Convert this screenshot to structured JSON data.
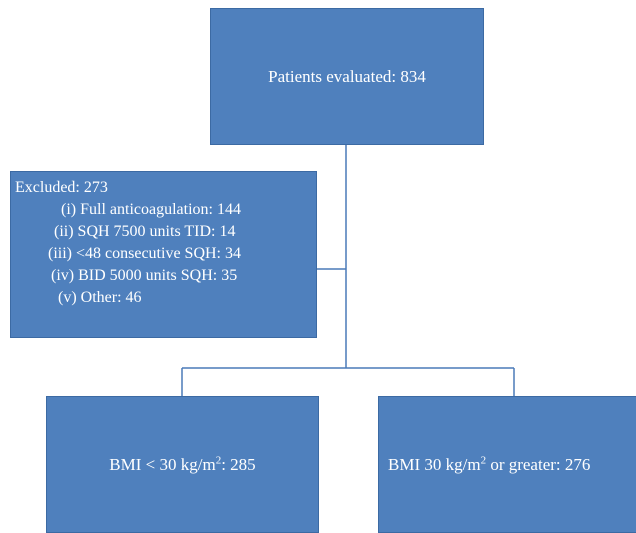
{
  "boxes": {
    "top": {
      "label": "Patients evaluated: 834"
    },
    "excluded": {
      "title": "Excluded: 273",
      "items": [
        "(i) Full anticoagulation: 144",
        "(ii) SQH 7500 units TID: 14",
        "(iii) <48 consecutive SQH: 34",
        "(iv) BID 5000 units SQH: 35",
        "(v) Other: 46"
      ]
    },
    "left": {
      "prefix": "BMI < 30 kg/m",
      "sup": "2",
      "suffix": ": 285"
    },
    "right": {
      "prefix": "BMI 30 kg/m",
      "sup": "2",
      "suffix": " or greater: 276"
    }
  },
  "colors": {
    "box_fill": "#4f80bd",
    "box_border": "#3c6aa3",
    "text": "#ffffff",
    "connector": "#4a7ab8"
  }
}
